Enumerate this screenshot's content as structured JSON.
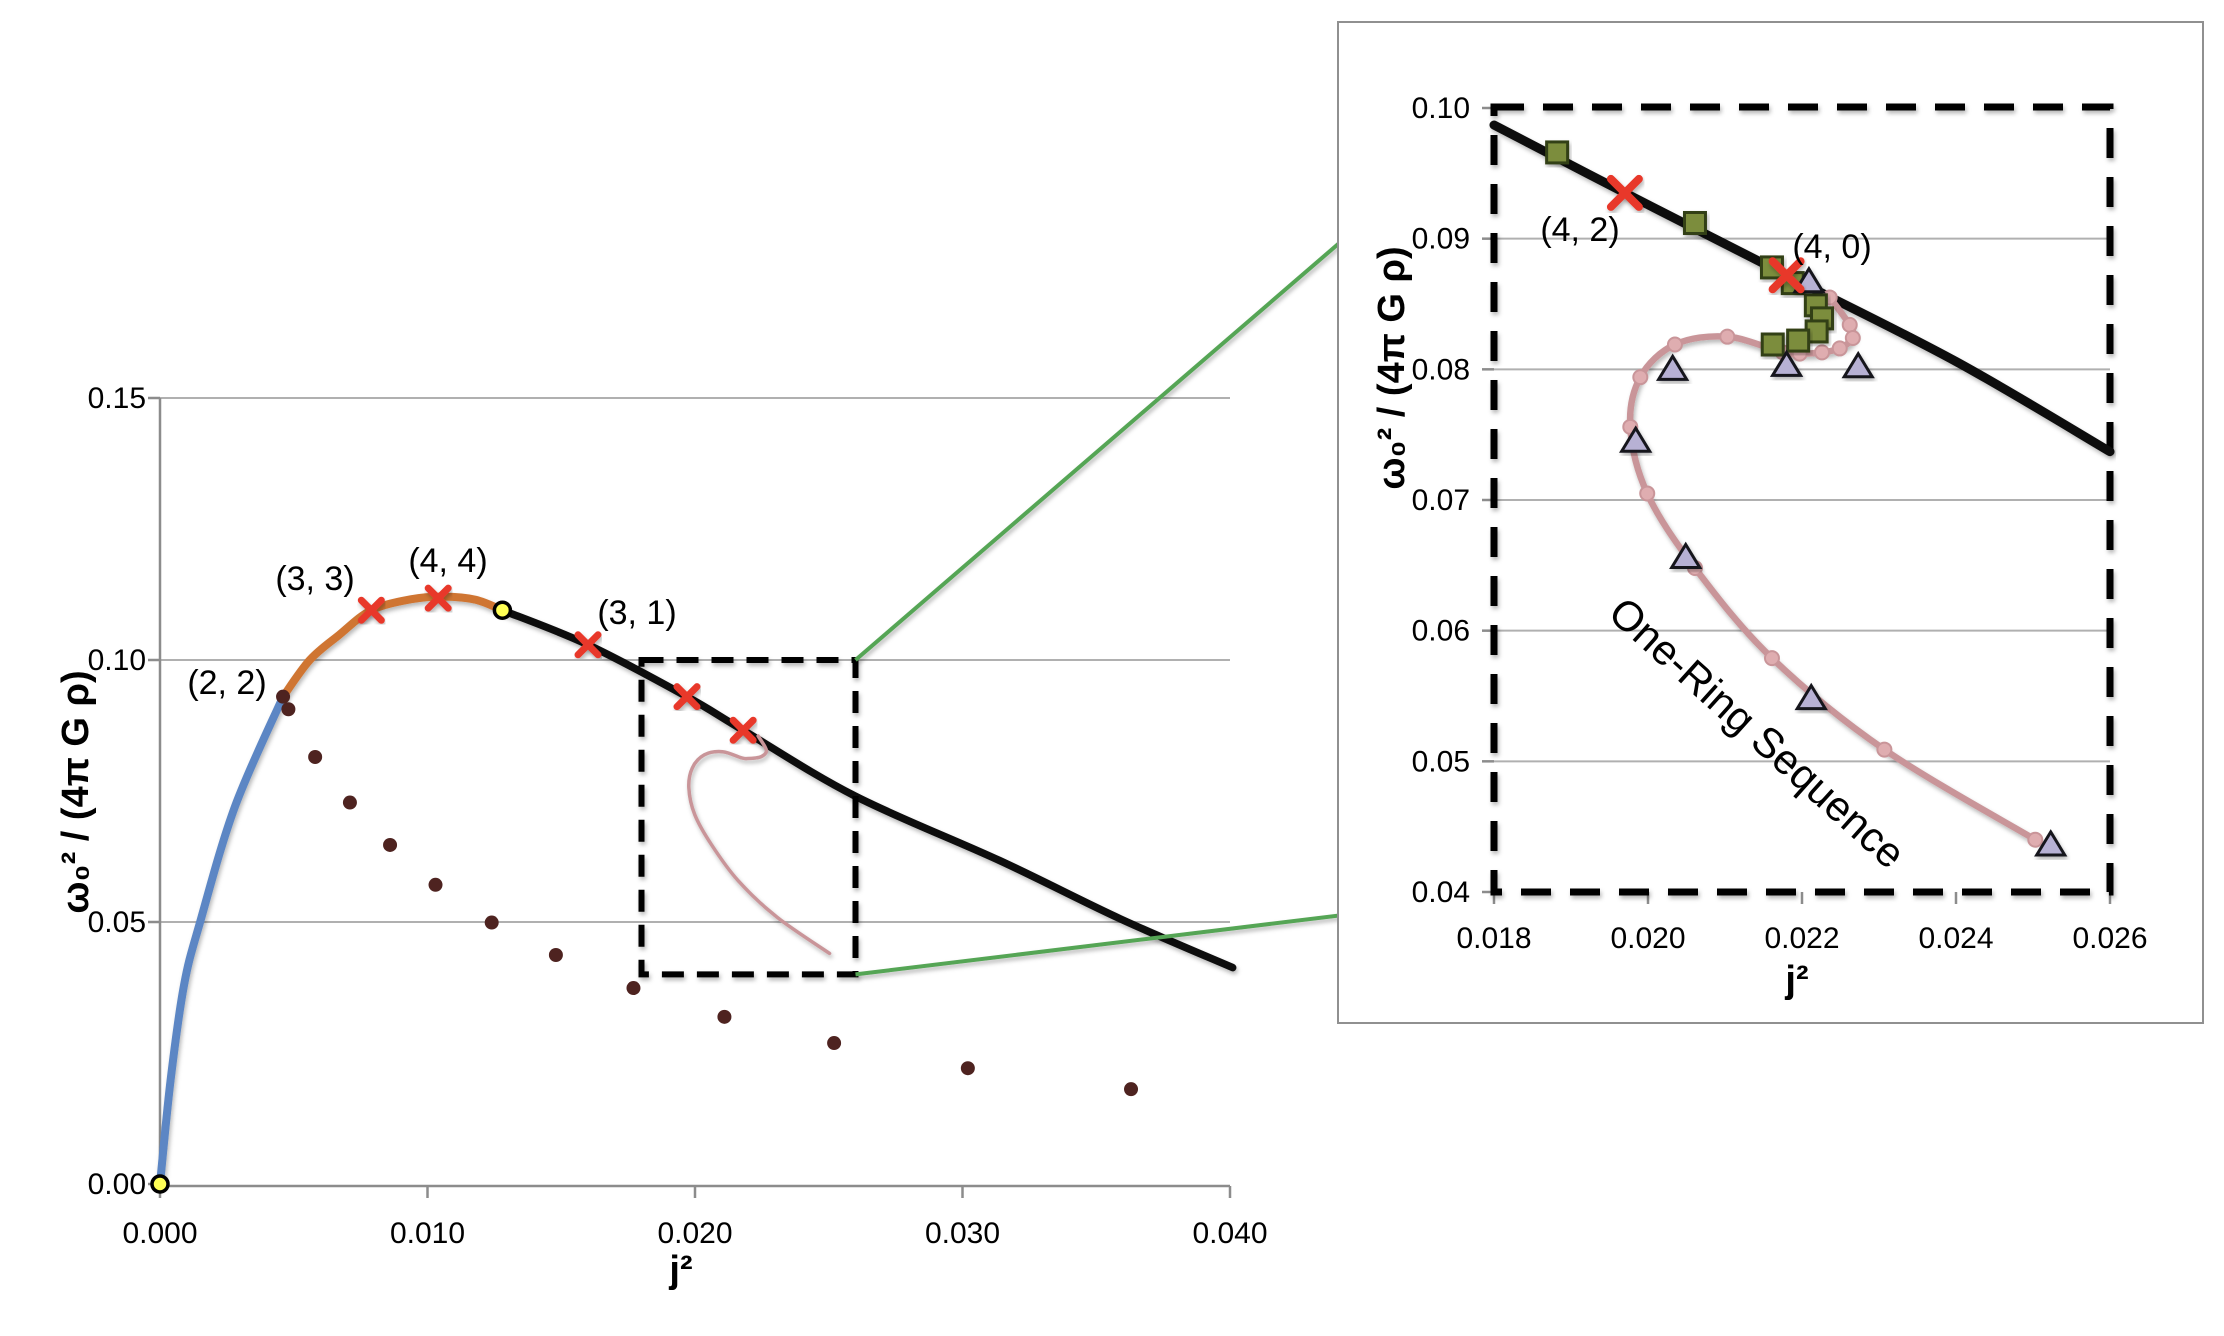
{
  "figure": {
    "background": "#ffffff",
    "description": "Angular momentum squared vs squared angular velocity diagram with zoom inset"
  },
  "colors": {
    "blue": "#5b86c4",
    "orange": "#cf7532",
    "black": "#0a0a0a",
    "dark_dot": "#4e2320",
    "red_x": "#e8392c",
    "yellow": "#ffff55",
    "pink_line": "#c99599",
    "pink_fill": "#dfadb0",
    "square_fill": "#7c8d3d",
    "square_stroke": "#333f14",
    "triangle_fill": "#b7b1d4",
    "triangle_stroke": "#16161f",
    "green": "#54a554",
    "grid": "#b0b0b0",
    "axis": "#8c8c8c",
    "panel": "#909090"
  },
  "one_ring_sequence": {
    "name": "one-ring-sequence",
    "points": [
      [
        0.02236,
        0.0855
      ],
      [
        0.02262,
        0.0834
      ],
      [
        0.02266,
        0.0824
      ],
      [
        0.02249,
        0.0816
      ],
      [
        0.02226,
        0.0813
      ],
      [
        0.02197,
        0.0812
      ],
      [
        0.02175,
        0.0813
      ],
      [
        0.02103,
        0.0825
      ],
      [
        0.02035,
        0.0819
      ],
      [
        0.0199,
        0.0794
      ],
      [
        0.01977,
        0.0756
      ],
      [
        0.01999,
        0.0705
      ],
      [
        0.02061,
        0.0648
      ],
      [
        0.02161,
        0.0579
      ],
      [
        0.02307,
        0.0509
      ],
      [
        0.02503,
        0.044
      ]
    ]
  },
  "chart_data": [
    {
      "id": "main",
      "type": "line",
      "xlabel": "j²",
      "ylabel": "ω₀² / (4π G ρ)",
      "xlim": [
        0.0,
        0.04
      ],
      "ylim": [
        0.0,
        0.15
      ],
      "grid": "horizontal",
      "legend_position": "none",
      "xticks": {
        "values": [
          0.0,
          0.01,
          0.02,
          0.03,
          0.04
        ],
        "labels": [
          "0.000",
          "0.010",
          "0.020",
          "0.030",
          "0.040"
        ]
      },
      "yticks": {
        "values": [
          0.0,
          0.05,
          0.1,
          0.15
        ],
        "labels": [
          "0.00",
          "0.05",
          "0.10",
          "0.15"
        ]
      },
      "series": [
        {
          "name": "sequence-blue",
          "type": "line",
          "color": "blue",
          "width": 8,
          "points": [
            [
              0.0,
              0.0
            ],
            [
              0.0004,
              0.02
            ],
            [
              0.0009,
              0.038
            ],
            [
              0.0015,
              0.05
            ],
            [
              0.0028,
              0.072
            ],
            [
              0.0046,
              0.093
            ]
          ]
        },
        {
          "name": "sequence-orange",
          "type": "line",
          "color": "orange",
          "width": 8,
          "points": [
            [
              0.0046,
              0.093
            ],
            [
              0.0056,
              0.1
            ],
            [
              0.0067,
              0.1048
            ],
            [
              0.0079,
              0.1095
            ],
            [
              0.0094,
              0.1116
            ],
            [
              0.0106,
              0.1121
            ],
            [
              0.0118,
              0.1115
            ],
            [
              0.0128,
              0.1095
            ]
          ]
        },
        {
          "name": "sequence-black",
          "type": "line",
          "color": "black",
          "width": 7.5,
          "points": [
            [
              0.0128,
              0.1095
            ],
            [
              0.016,
              0.1029
            ],
            [
              0.0197,
              0.093
            ],
            [
              0.0218,
              0.0866
            ],
            [
              0.026,
              0.074
            ],
            [
              0.0314,
              0.0617
            ],
            [
              0.0359,
              0.0506
            ],
            [
              0.0401,
              0.0413
            ]
          ]
        },
        {
          "name": "one-ring-sequence-preview",
          "type": "line",
          "color": "pink_line",
          "width": 3.5,
          "points_ref": "one_ring_sequence"
        },
        {
          "name": "dark-point-sequence",
          "type": "scatter",
          "marker": "dot",
          "color": "dark_dot",
          "points": [
            [
              0.0046,
              0.093
            ],
            [
              0.0048,
              0.0906
            ],
            [
              0.0058,
              0.0815
            ],
            [
              0.0071,
              0.0728
            ],
            [
              0.0086,
              0.0647
            ],
            [
              0.0103,
              0.0571
            ],
            [
              0.0124,
              0.0499
            ],
            [
              0.0148,
              0.0437
            ],
            [
              0.0177,
              0.0374
            ],
            [
              0.0211,
              0.0319
            ],
            [
              0.0252,
              0.0269
            ],
            [
              0.0302,
              0.0221
            ],
            [
              0.0363,
              0.0181
            ]
          ]
        },
        {
          "name": "bifurcation-points-yellow",
          "type": "scatter",
          "marker": "circle",
          "fill": "yellow",
          "stroke": "black",
          "points": [
            [
              0.0,
              0.0
            ],
            [
              0.0128,
              0.1095
            ]
          ]
        },
        {
          "name": "instability-points-red-x",
          "type": "scatter",
          "marker": "x",
          "color": "red_x",
          "points": [
            [
              0.0079,
              0.1095
            ],
            [
              0.0104,
              0.1118
            ],
            [
              0.016,
              0.1029
            ],
            [
              0.0197,
              0.093
            ],
            [
              0.0218,
              0.0866
            ]
          ]
        }
      ],
      "annotations": [
        {
          "text": "(2, 2)",
          "x": 0.0025,
          "y": 0.0958
        },
        {
          "text": "(3, 3)",
          "x": 0.0058,
          "y": 0.1156
        },
        {
          "text": "(4, 4)",
          "x": 0.0108,
          "y": 0.1191
        },
        {
          "text": "(3, 1)",
          "x": 0.0178,
          "y": 0.1092
        }
      ],
      "zoom_box": {
        "x": [
          0.018,
          0.026
        ],
        "y": [
          0.04,
          0.1
        ]
      }
    },
    {
      "id": "inset",
      "type": "line",
      "xlabel": "j²",
      "ylabel": "ω₀² / (4π G ρ)",
      "xlim": [
        0.018,
        0.026
      ],
      "ylim": [
        0.04,
        0.1
      ],
      "grid": "horizontal",
      "legend_position": "none",
      "xticks": {
        "values": [
          0.018,
          0.02,
          0.022,
          0.024,
          0.026
        ],
        "labels": [
          "0.018",
          "0.020",
          "0.022",
          "0.024",
          "0.026"
        ]
      },
      "yticks": {
        "values": [
          0.04,
          0.05,
          0.06,
          0.07,
          0.08,
          0.09,
          0.1
        ],
        "labels": [
          "0.04",
          "0.05",
          "0.06",
          "0.07",
          "0.08",
          "0.09",
          "0.10"
        ]
      },
      "series": [
        {
          "name": "sequence-black-inset",
          "type": "line",
          "color": "black",
          "width": 9,
          "points": [
            [
              0.018,
              0.0987
            ],
            [
              0.0197,
              0.0935
            ],
            [
              0.0218,
              0.0872
            ],
            [
              0.024,
              0.0806
            ],
            [
              0.026,
              0.0737
            ]
          ]
        },
        {
          "name": "one-ring-sequence",
          "type": "line",
          "color": "pink_line",
          "width": 6.5,
          "marker": "pink-dot",
          "points_ref": "one_ring_sequence"
        },
        {
          "name": "green-square-models",
          "type": "scatter",
          "marker": "square",
          "fill": "square_fill",
          "stroke": "square_stroke",
          "points": [
            [
              0.01882,
              0.0966
            ],
            [
              0.02061,
              0.0912
            ],
            [
              0.02161,
              0.0878
            ],
            [
              0.02188,
              0.0866
            ],
            [
              0.02218,
              0.0849
            ],
            [
              0.02226,
              0.0839
            ],
            [
              0.02219,
              0.0829
            ],
            [
              0.02195,
              0.0822
            ],
            [
              0.02162,
              0.0819
            ]
          ]
        },
        {
          "name": "triangle-models",
          "type": "scatter",
          "marker": "triangle",
          "fill": "triangle_fill",
          "stroke": "triangle_stroke",
          "points": [
            [
              0.02209,
              0.0867
            ],
            [
              0.02032,
              0.08
            ],
            [
              0.0218,
              0.0803
            ],
            [
              0.02273,
              0.0802
            ],
            [
              0.01984,
              0.0745
            ],
            [
              0.02049,
              0.0656
            ],
            [
              0.02212,
              0.0548
            ],
            [
              0.02523,
              0.0436
            ]
          ]
        },
        {
          "name": "instability-points-red-x-inset",
          "type": "scatter",
          "marker": "x",
          "color": "red_x",
          "points": [
            [
              0.0197,
              0.0935
            ],
            [
              0.0218,
              0.0872
            ]
          ]
        }
      ],
      "annotations": [
        {
          "text": "(4, 2)",
          "x": 0.01912,
          "y": 0.0907
        },
        {
          "text": "(4, 0)",
          "x": 0.02239,
          "y": 0.0894
        },
        {
          "text": "One-Ring Sequence",
          "x": 0.02142,
          "y": 0.0522,
          "rotate": 42
        }
      ]
    }
  ]
}
